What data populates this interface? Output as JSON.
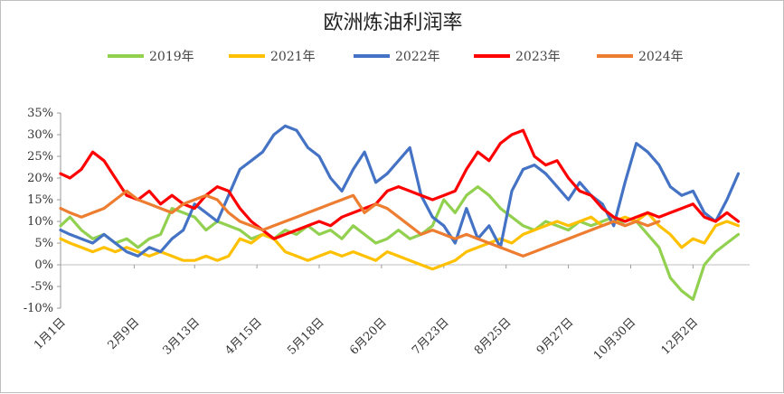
{
  "chart_data": {
    "type": "line",
    "title": "欧洲炼油利润率",
    "xlabel": "",
    "ylabel": "",
    "x_tick_labels": [
      "1月1日",
      "2月9日",
      "3月13日",
      "4月15日",
      "5月18日",
      "6月20日",
      "7月23日",
      "8月25日",
      "9月27日",
      "10月30日",
      "12月2日"
    ],
    "x_tick_days": [
      1,
      40,
      72,
      105,
      138,
      171,
      204,
      237,
      270,
      303,
      336
    ],
    "x_range": [
      1,
      366
    ],
    "y_tick_labels": [
      "35%",
      "30%",
      "25%",
      "20%",
      "15%",
      "10%",
      "5%",
      "0%",
      "-5%",
      "-10%"
    ],
    "ylim": [
      -10,
      35
    ],
    "y_unit": "%",
    "legend_position": "top",
    "grid": false,
    "series": [
      {
        "name": "2019年",
        "color": "#92d050",
        "x": [
          1,
          6,
          12,
          18,
          24,
          30,
          36,
          42,
          48,
          54,
          60,
          66,
          72,
          78,
          84,
          90,
          96,
          102,
          108,
          114,
          120,
          126,
          132,
          138,
          144,
          150,
          156,
          162,
          168,
          174,
          180,
          186,
          192,
          198,
          204,
          210,
          216,
          222,
          228,
          234,
          240,
          246,
          252,
          258,
          264,
          270,
          276,
          282,
          288,
          294,
          300,
          306,
          312,
          318,
          324,
          330,
          336,
          342,
          348,
          354,
          360
        ],
        "values": [
          9,
          11,
          8,
          6,
          7,
          5,
          6,
          4,
          6,
          7,
          13,
          12,
          11,
          8,
          10,
          9,
          8,
          6,
          7,
          6,
          8,
          7,
          9,
          7,
          8,
          6,
          9,
          7,
          5,
          6,
          8,
          6,
          7,
          9,
          15,
          12,
          16,
          18,
          16,
          13,
          11,
          9,
          8,
          10,
          9,
          8,
          10,
          9,
          10,
          11,
          9,
          10,
          7,
          4,
          -3,
          -6,
          -8,
          0,
          3,
          5,
          7
        ]
      },
      {
        "name": "2021年",
        "color": "#ffc000",
        "x": [
          1,
          6,
          12,
          18,
          24,
          30,
          36,
          42,
          48,
          54,
          60,
          66,
          72,
          78,
          84,
          90,
          96,
          102,
          108,
          114,
          120,
          126,
          132,
          138,
          144,
          150,
          156,
          162,
          168,
          174,
          180,
          186,
          192,
          198,
          204,
          210,
          216,
          222,
          228,
          234,
          240,
          246,
          252,
          258,
          264,
          270,
          276,
          282,
          288,
          294,
          300,
          306,
          312,
          318,
          324,
          330,
          336,
          342,
          348,
          354,
          360
        ],
        "values": [
          6,
          5,
          4,
          3,
          4,
          3,
          4,
          3,
          2,
          3,
          2,
          1,
          1,
          2,
          1,
          2,
          6,
          5,
          7,
          6,
          3,
          2,
          1,
          2,
          3,
          2,
          3,
          2,
          1,
          3,
          2,
          1,
          0,
          -1,
          0,
          1,
          3,
          4,
          5,
          6,
          5,
          7,
          8,
          9,
          10,
          9,
          10,
          11,
          9,
          10,
          11,
          10,
          12,
          9,
          7,
          4,
          6,
          5,
          9,
          10,
          9
        ]
      },
      {
        "name": "2022年",
        "color": "#4472c4",
        "x": [
          1,
          6,
          12,
          18,
          24,
          30,
          36,
          42,
          48,
          54,
          60,
          66,
          72,
          78,
          84,
          90,
          96,
          102,
          108,
          114,
          120,
          126,
          132,
          138,
          144,
          150,
          156,
          162,
          168,
          174,
          180,
          186,
          192,
          198,
          204,
          210,
          216,
          222,
          228,
          234,
          240,
          246,
          252,
          258,
          264,
          270,
          276,
          282,
          288,
          294,
          300,
          306,
          312,
          318,
          324,
          330,
          336,
          342,
          348,
          354,
          360
        ],
        "values": [
          8,
          7,
          6,
          5,
          7,
          5,
          3,
          2,
          4,
          3,
          6,
          8,
          14,
          12,
          10,
          16,
          22,
          24,
          26,
          30,
          32,
          31,
          27,
          25,
          20,
          17,
          22,
          26,
          19,
          21,
          24,
          27,
          16,
          11,
          9,
          5,
          13,
          6,
          9,
          4,
          17,
          22,
          23,
          21,
          18,
          15,
          19,
          16,
          14,
          9,
          19,
          28,
          26,
          23,
          18,
          16,
          17,
          12,
          10,
          15,
          21
        ]
      },
      {
        "name": "2023年",
        "color": "#ff0000",
        "x": [
          1,
          6,
          12,
          18,
          24,
          30,
          36,
          42,
          48,
          54,
          60,
          66,
          72,
          78,
          84,
          90,
          96,
          102,
          108,
          114,
          120,
          126,
          132,
          138,
          144,
          150,
          156,
          162,
          168,
          174,
          180,
          186,
          192,
          198,
          204,
          210,
          216,
          222,
          228,
          234,
          240,
          246,
          252,
          258,
          264,
          270,
          276,
          282,
          288,
          294,
          300,
          306,
          312,
          318,
          324,
          330,
          336,
          342,
          348,
          354,
          360
        ],
        "values": [
          21,
          20,
          22,
          26,
          24,
          20,
          16,
          15,
          17,
          14,
          16,
          14,
          13,
          16,
          18,
          17,
          13,
          10,
          8,
          6,
          7,
          8,
          9,
          10,
          9,
          11,
          12,
          13,
          14,
          17,
          18,
          17,
          16,
          15,
          16,
          17,
          22,
          26,
          24,
          28,
          30,
          31,
          25,
          23,
          24,
          20,
          17,
          16,
          13,
          11,
          10,
          11,
          12,
          11,
          12,
          13,
          14,
          11,
          10,
          12,
          10
        ]
      },
      {
        "name": "2024年",
        "color": "#ed7d31",
        "x": [
          1,
          6,
          12,
          18,
          24,
          30,
          36,
          42,
          48,
          54,
          60,
          66,
          72,
          78,
          84,
          90,
          96,
          102,
          108,
          114,
          120,
          126,
          132,
          138,
          144,
          150,
          156,
          162,
          168,
          174,
          180,
          186,
          192,
          198,
          204,
          210,
          216,
          222,
          228,
          234,
          240,
          246,
          252,
          258,
          264,
          270,
          276,
          282,
          288,
          294,
          300,
          306,
          312,
          318
        ],
        "values": [
          13,
          12,
          11,
          12,
          13,
          15,
          17,
          15,
          14,
          13,
          12,
          14,
          15,
          16,
          15,
          12,
          10,
          9,
          8,
          9,
          10,
          11,
          12,
          13,
          14,
          15,
          16,
          12,
          14,
          13,
          11,
          9,
          7,
          8,
          7,
          6,
          7,
          6,
          5,
          4,
          3,
          2,
          3,
          4,
          5,
          6,
          7,
          8,
          9,
          10,
          9,
          10,
          9,
          10
        ]
      }
    ]
  }
}
